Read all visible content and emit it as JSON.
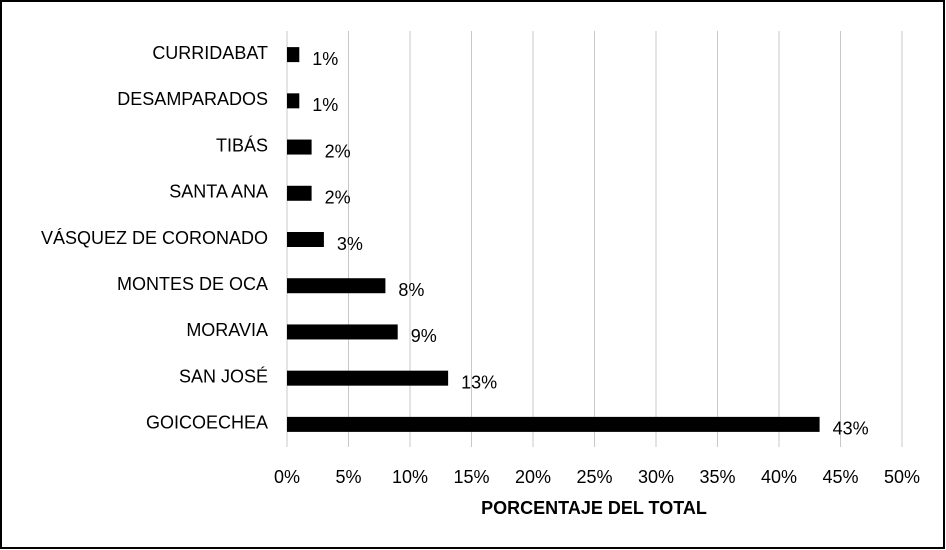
{
  "chart_data": {
    "type": "hbar",
    "categories": [
      "CURRIDABAT",
      "DESAMPARADOS",
      "TIBÁS",
      "SANTA ANA",
      "VÁSQUEZ DE CORONADO",
      "MONTES DE OCA",
      "MORAVIA",
      "SAN JOSÉ",
      "GOICOECHEA"
    ],
    "values": [
      1,
      1,
      2,
      2,
      3,
      8,
      9,
      13.1,
      43.3
    ],
    "value_labels": [
      "1%",
      "1%",
      "2%",
      "2%",
      "3%",
      "8%",
      "9%",
      "13%",
      "43%"
    ],
    "color": "#000000",
    "xlabel": "PORCENTAJE DEL TOTAL",
    "xlim": [
      0,
      50
    ],
    "xticks": [
      {
        "value": 0,
        "label": "0%"
      },
      {
        "value": 5,
        "label": "5%"
      },
      {
        "value": 10,
        "label": "10%"
      },
      {
        "value": 15,
        "label": "15%"
      },
      {
        "value": 20,
        "label": "20%"
      },
      {
        "value": 25,
        "label": "25%"
      },
      {
        "value": 30,
        "label": "30%"
      },
      {
        "value": 35,
        "label": "35%"
      },
      {
        "value": 40,
        "label": "40%"
      },
      {
        "value": 45,
        "label": "45%"
      },
      {
        "value": 50,
        "label": "50%"
      }
    ],
    "grid": true
  }
}
